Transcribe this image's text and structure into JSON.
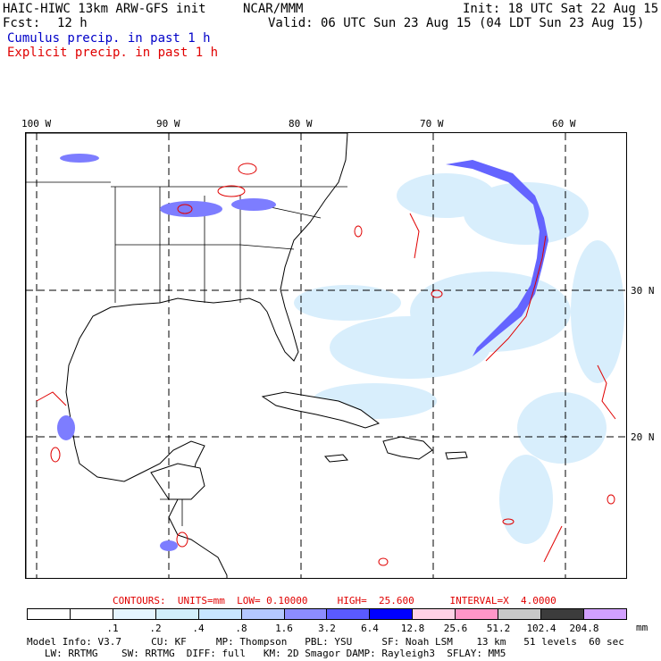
{
  "header": {
    "model": "HAIC-HIWC 13km ARW-GFS init",
    "org": "NCAR/MMM",
    "init": "Init: 18 UTC Sat 22 Aug 15",
    "fcst_label": "Fcst:",
    "fcst_value": "12 h",
    "valid": "Valid: 06 UTC Sun 23 Aug 15 (04 LDT Sun 23 Aug 15)",
    "cumulus": "Cumulus precip. in past 1 h",
    "explicit": "Explicit precip. in past 1 h"
  },
  "map": {
    "lon_labels": [
      "100 W",
      "90 W",
      "80 W",
      "70 W",
      "60 W"
    ],
    "lat_labels": [
      "30 N",
      "20 N"
    ]
  },
  "contours": {
    "text": "CONTOURS:  UNITS=mm  LOW= 0.10000     HIGH=  25.600      INTERVAL=X  4.0000"
  },
  "colorbar": {
    "labels": [
      ".1",
      ".2",
      ".4",
      ".8",
      "1.6",
      "3.2",
      "6.4",
      "12.8",
      "25.6",
      "51.2",
      "102.4",
      "204.8"
    ],
    "units": "mm",
    "colors": [
      "#ffffff",
      "#ffffff",
      "#e6f5ff",
      "#d2eefa",
      "#c8e6ff",
      "#b4c8ff",
      "#8c8cff",
      "#5a5aff",
      "#0000ff",
      "#ffd2e6",
      "#ff96c8",
      "#c8c8c8",
      "#3c3c3c",
      "#d2a0ff"
    ]
  },
  "footer": {
    "line1": "Model Info: V3.7     CU: KF     MP: Thompson   PBL: YSU     SF: Noah LSM    13 km   51 levels  60 sec",
    "line2": "   LW: RRTMG    SW: RRTMG  DIFF: full   KM: 2D Smagor DAMP: Rayleigh3  SFLAY: MM5"
  }
}
